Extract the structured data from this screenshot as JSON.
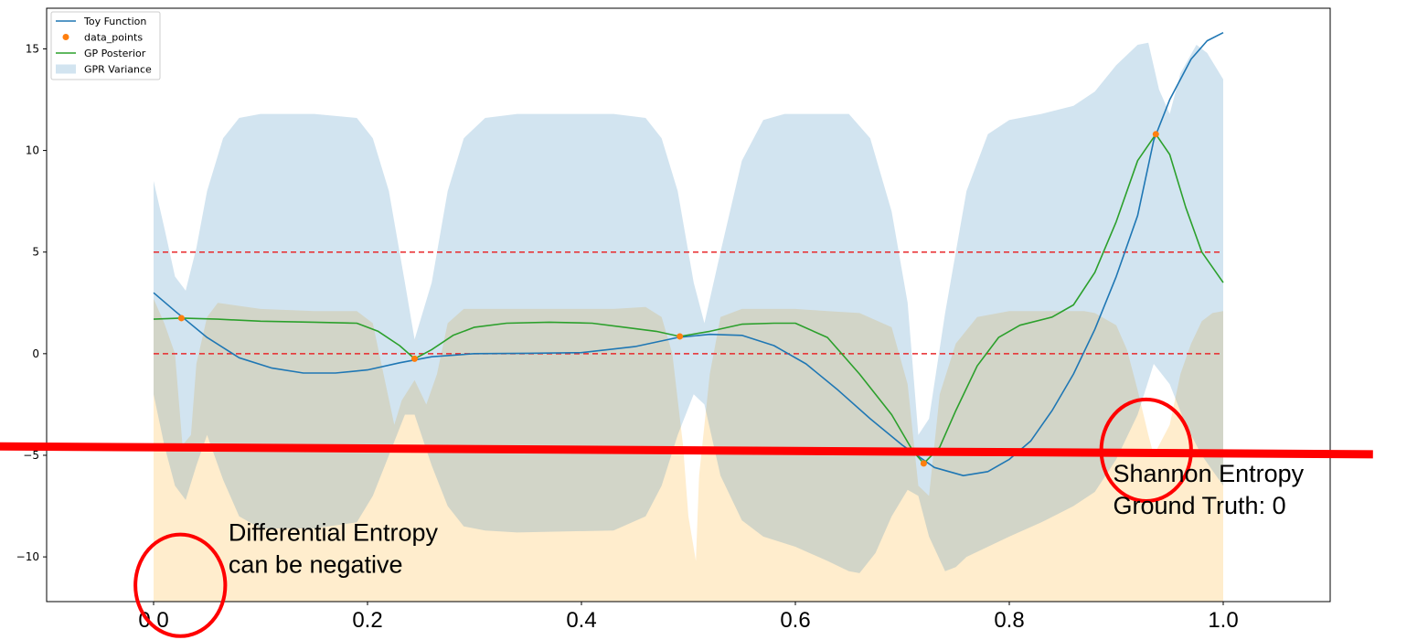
{
  "chart_data": {
    "type": "line",
    "x_range": [
      -0.1,
      1.1
    ],
    "y_range": [
      -12.2,
      17.0
    ],
    "x_ticks": [
      0.0,
      0.2,
      0.4,
      0.6,
      0.8,
      1.0
    ],
    "x_tick_labels": [
      "0.0",
      "0.2",
      "0.4",
      "0.6",
      "0.8",
      "1.0"
    ],
    "y_ticks": [
      15,
      10,
      5,
      0,
      -5,
      -10
    ],
    "y_tick_labels": [
      "15",
      "10",
      "5",
      "0",
      "−5",
      "−10"
    ],
    "grid": false,
    "legend_position": "top-left",
    "legend": [
      {
        "label": "Toy Function",
        "kind": "line",
        "color": "#1f77b4"
      },
      {
        "label": "data_points",
        "kind": "marker",
        "color": "#ff7f0e"
      },
      {
        "label": "GP Posterior",
        "kind": "line",
        "color": "#2ca02c"
      },
      {
        "label": "GPR Variance",
        "kind": "band",
        "color": "#1f77b4"
      }
    ],
    "series": [
      {
        "name": "Toy Function",
        "kind": "line",
        "color": "#1f77b4",
        "points": [
          [
            0.0,
            3.0
          ],
          [
            0.02,
            2.1
          ],
          [
            0.05,
            0.8
          ],
          [
            0.08,
            -0.2
          ],
          [
            0.11,
            -0.7
          ],
          [
            0.14,
            -0.95
          ],
          [
            0.17,
            -0.95
          ],
          [
            0.2,
            -0.8
          ],
          [
            0.23,
            -0.45
          ],
          [
            0.26,
            -0.15
          ],
          [
            0.3,
            0.0
          ],
          [
            0.35,
            0.02
          ],
          [
            0.4,
            0.05
          ],
          [
            0.45,
            0.35
          ],
          [
            0.49,
            0.8
          ],
          [
            0.52,
            0.95
          ],
          [
            0.55,
            0.9
          ],
          [
            0.58,
            0.4
          ],
          [
            0.61,
            -0.5
          ],
          [
            0.64,
            -1.8
          ],
          [
            0.67,
            -3.2
          ],
          [
            0.7,
            -4.5
          ],
          [
            0.73,
            -5.6
          ],
          [
            0.757,
            -6.0
          ],
          [
            0.78,
            -5.8
          ],
          [
            0.8,
            -5.2
          ],
          [
            0.82,
            -4.3
          ],
          [
            0.84,
            -2.8
          ],
          [
            0.86,
            -1.0
          ],
          [
            0.88,
            1.2
          ],
          [
            0.9,
            3.8
          ],
          [
            0.92,
            6.8
          ],
          [
            0.935,
            10.5
          ],
          [
            0.95,
            12.5
          ],
          [
            0.97,
            14.5
          ],
          [
            0.985,
            15.4
          ],
          [
            1.0,
            15.8
          ]
        ]
      },
      {
        "name": "GP Posterior",
        "kind": "line",
        "color": "#2ca02c",
        "points": [
          [
            0.0,
            1.7
          ],
          [
            0.026,
            1.75
          ],
          [
            0.06,
            1.7
          ],
          [
            0.1,
            1.6
          ],
          [
            0.15,
            1.55
          ],
          [
            0.19,
            1.5
          ],
          [
            0.21,
            1.1
          ],
          [
            0.23,
            0.4
          ],
          [
            0.244,
            -0.25
          ],
          [
            0.26,
            0.2
          ],
          [
            0.28,
            0.9
          ],
          [
            0.3,
            1.3
          ],
          [
            0.33,
            1.5
          ],
          [
            0.37,
            1.55
          ],
          [
            0.41,
            1.5
          ],
          [
            0.44,
            1.3
          ],
          [
            0.47,
            1.1
          ],
          [
            0.492,
            0.85
          ],
          [
            0.52,
            1.1
          ],
          [
            0.55,
            1.45
          ],
          [
            0.58,
            1.5
          ],
          [
            0.6,
            1.5
          ],
          [
            0.63,
            0.8
          ],
          [
            0.66,
            -1.0
          ],
          [
            0.69,
            -3.0
          ],
          [
            0.71,
            -4.8
          ],
          [
            0.72,
            -5.4
          ],
          [
            0.735,
            -4.6
          ],
          [
            0.75,
            -2.8
          ],
          [
            0.77,
            -0.6
          ],
          [
            0.79,
            0.8
          ],
          [
            0.81,
            1.4
          ],
          [
            0.84,
            1.8
          ],
          [
            0.86,
            2.4
          ],
          [
            0.88,
            4.0
          ],
          [
            0.9,
            6.5
          ],
          [
            0.92,
            9.5
          ],
          [
            0.937,
            10.8
          ],
          [
            0.95,
            9.8
          ],
          [
            0.965,
            7.2
          ],
          [
            0.98,
            5.0
          ],
          [
            1.0,
            3.5
          ]
        ]
      },
      {
        "name": "data_points",
        "kind": "scatter",
        "color": "#ff7f0e",
        "points": [
          [
            0.026,
            1.75
          ],
          [
            0.244,
            -0.25
          ],
          [
            0.492,
            0.85
          ],
          [
            0.72,
            -5.4
          ],
          [
            0.937,
            10.8
          ]
        ]
      },
      {
        "name": "GPR Variance",
        "kind": "band",
        "color": "#1f77b4",
        "opacity": 0.2,
        "upper": [
          [
            0.0,
            8.5
          ],
          [
            0.01,
            6.2
          ],
          [
            0.02,
            3.8
          ],
          [
            0.03,
            3.1
          ],
          [
            0.04,
            5.2
          ],
          [
            0.05,
            8.0
          ],
          [
            0.065,
            10.6
          ],
          [
            0.08,
            11.6
          ],
          [
            0.1,
            11.8
          ],
          [
            0.15,
            11.8
          ],
          [
            0.19,
            11.6
          ],
          [
            0.205,
            10.6
          ],
          [
            0.22,
            8.0
          ],
          [
            0.235,
            3.5
          ],
          [
            0.244,
            0.7
          ],
          [
            0.26,
            3.5
          ],
          [
            0.275,
            8.0
          ],
          [
            0.29,
            10.6
          ],
          [
            0.31,
            11.6
          ],
          [
            0.34,
            11.8
          ],
          [
            0.43,
            11.8
          ],
          [
            0.46,
            11.6
          ],
          [
            0.475,
            10.6
          ],
          [
            0.49,
            8.0
          ],
          [
            0.505,
            3.5
          ],
          [
            0.515,
            1.5
          ],
          [
            0.53,
            5.0
          ],
          [
            0.55,
            9.5
          ],
          [
            0.57,
            11.5
          ],
          [
            0.59,
            11.8
          ],
          [
            0.65,
            11.8
          ],
          [
            0.67,
            10.6
          ],
          [
            0.69,
            7.0
          ],
          [
            0.705,
            2.5
          ],
          [
            0.715,
            -4.0
          ],
          [
            0.725,
            -3.2
          ],
          [
            0.74,
            2.0
          ],
          [
            0.76,
            8.0
          ],
          [
            0.78,
            10.8
          ],
          [
            0.8,
            11.5
          ],
          [
            0.83,
            11.8
          ],
          [
            0.86,
            12.2
          ],
          [
            0.88,
            12.9
          ],
          [
            0.9,
            14.2
          ],
          [
            0.92,
            15.2
          ],
          [
            0.93,
            15.3
          ],
          [
            0.94,
            13.0
          ],
          [
            0.95,
            11.8
          ],
          [
            0.96,
            13.8
          ],
          [
            0.975,
            15.2
          ],
          [
            0.985,
            14.8
          ],
          [
            1.0,
            13.5
          ]
        ],
        "lower": [
          [
            0.0,
            -2.0
          ],
          [
            0.01,
            -4.5
          ],
          [
            0.02,
            -6.5
          ],
          [
            0.03,
            -7.2
          ],
          [
            0.04,
            -5.5
          ],
          [
            0.05,
            -4.0
          ],
          [
            0.065,
            -6.2
          ],
          [
            0.08,
            -8.0
          ],
          [
            0.1,
            -8.6
          ],
          [
            0.15,
            -8.6
          ],
          [
            0.19,
            -8.3
          ],
          [
            0.205,
            -7.0
          ],
          [
            0.22,
            -5.0
          ],
          [
            0.235,
            -3.0
          ],
          [
            0.244,
            -3.0
          ],
          [
            0.26,
            -5.5
          ],
          [
            0.275,
            -7.5
          ],
          [
            0.29,
            -8.5
          ],
          [
            0.31,
            -8.7
          ],
          [
            0.34,
            -8.8
          ],
          [
            0.43,
            -8.7
          ],
          [
            0.46,
            -8.0
          ],
          [
            0.475,
            -6.5
          ],
          [
            0.49,
            -4.0
          ],
          [
            0.505,
            -2.0
          ],
          [
            0.515,
            -2.5
          ],
          [
            0.53,
            -6.0
          ],
          [
            0.55,
            -8.2
          ],
          [
            0.57,
            -9.0
          ],
          [
            0.6,
            -9.5
          ],
          [
            0.63,
            -10.2
          ],
          [
            0.65,
            -10.7
          ],
          [
            0.66,
            -10.8
          ],
          [
            0.675,
            -9.8
          ],
          [
            0.69,
            -8.0
          ],
          [
            0.705,
            -6.7
          ],
          [
            0.715,
            -7.0
          ],
          [
            0.725,
            -9.0
          ],
          [
            0.74,
            -10.7
          ],
          [
            0.75,
            -10.5
          ],
          [
            0.76,
            -10.0
          ],
          [
            0.78,
            -9.5
          ],
          [
            0.8,
            -9.0
          ],
          [
            0.83,
            -8.3
          ],
          [
            0.86,
            -7.5
          ],
          [
            0.88,
            -6.8
          ],
          [
            0.9,
            -5.2
          ],
          [
            0.92,
            -3.0
          ],
          [
            0.935,
            -0.5
          ],
          [
            0.95,
            -1.5
          ],
          [
            0.965,
            -3.5
          ],
          [
            0.98,
            -5.0
          ],
          [
            1.0,
            -6.5
          ]
        ]
      },
      {
        "name": "",
        "kind": "area",
        "color": "#ffc04d",
        "opacity": 0.28,
        "baseline": -12.2,
        "upper": [
          [
            0.0,
            2.7
          ],
          [
            0.01,
            1.5
          ],
          [
            0.02,
            0.0
          ],
          [
            0.027,
            -4.5
          ],
          [
            0.035,
            -4.0
          ],
          [
            0.04,
            -0.5
          ],
          [
            0.05,
            1.8
          ],
          [
            0.06,
            2.5
          ],
          [
            0.1,
            2.2
          ],
          [
            0.15,
            2.1
          ],
          [
            0.19,
            2.1
          ],
          [
            0.205,
            1.5
          ],
          [
            0.215,
            -1.0
          ],
          [
            0.225,
            -3.5
          ],
          [
            0.232,
            -2.3
          ],
          [
            0.244,
            -1.3
          ],
          [
            0.255,
            -2.5
          ],
          [
            0.265,
            -1.0
          ],
          [
            0.275,
            1.5
          ],
          [
            0.29,
            2.2
          ],
          [
            0.33,
            2.2
          ],
          [
            0.43,
            2.2
          ],
          [
            0.46,
            2.3
          ],
          [
            0.475,
            1.8
          ],
          [
            0.485,
            0.0
          ],
          [
            0.495,
            -4.5
          ],
          [
            0.5,
            -8.0
          ],
          [
            0.507,
            -10.2
          ],
          [
            0.51,
            -6.0
          ],
          [
            0.52,
            -1.0
          ],
          [
            0.53,
            1.8
          ],
          [
            0.55,
            2.2
          ],
          [
            0.6,
            2.2
          ],
          [
            0.63,
            2.1
          ],
          [
            0.66,
            2.0
          ],
          [
            0.69,
            1.3
          ],
          [
            0.705,
            -1.5
          ],
          [
            0.715,
            -6.5
          ],
          [
            0.725,
            -7.0
          ],
          [
            0.735,
            -2.0
          ],
          [
            0.75,
            0.5
          ],
          [
            0.77,
            1.8
          ],
          [
            0.8,
            2.1
          ],
          [
            0.85,
            2.1
          ],
          [
            0.87,
            2.1
          ],
          [
            0.88,
            2.0
          ],
          [
            0.9,
            1.4
          ],
          [
            0.91,
            0.2
          ],
          [
            0.92,
            -1.8
          ],
          [
            0.93,
            -4.0
          ],
          [
            0.935,
            -5.0
          ],
          [
            0.95,
            -3.5
          ],
          [
            0.96,
            -1.0
          ],
          [
            0.97,
            0.5
          ],
          [
            0.98,
            1.6
          ],
          [
            0.99,
            2.0
          ],
          [
            1.0,
            2.1
          ]
        ]
      }
    ],
    "reference_lines": [
      {
        "kind": "hline",
        "y": 5,
        "color": "#e8282b",
        "style": "dashed"
      },
      {
        "kind": "hline",
        "y": 0,
        "color": "#e8282b",
        "style": "dashed"
      }
    ],
    "overlay_line": {
      "color": "#ff0000",
      "points": [
        [
          -0.18,
          -4.55
        ],
        [
          1.14,
          -4.95
        ]
      ]
    },
    "annotations": [
      {
        "name": "differential-entropy",
        "lines": [
          "Differential Entropy",
          "can be negative"
        ],
        "x": 0.07,
        "y": -9.2,
        "circle": {
          "cx": 0.025,
          "cy": -11.4,
          "rx": 0.042,
          "ry": 2.5
        }
      },
      {
        "name": "shannon-entropy",
        "lines": [
          "Shannon Entropy",
          "Ground Truth: 0"
        ],
        "x": 0.897,
        "y": -6.3,
        "circle": {
          "cx": 0.928,
          "cy": -4.75,
          "rx": 0.042,
          "ry": 2.5
        }
      }
    ],
    "title": "",
    "xlabel": "",
    "ylabel": ""
  }
}
